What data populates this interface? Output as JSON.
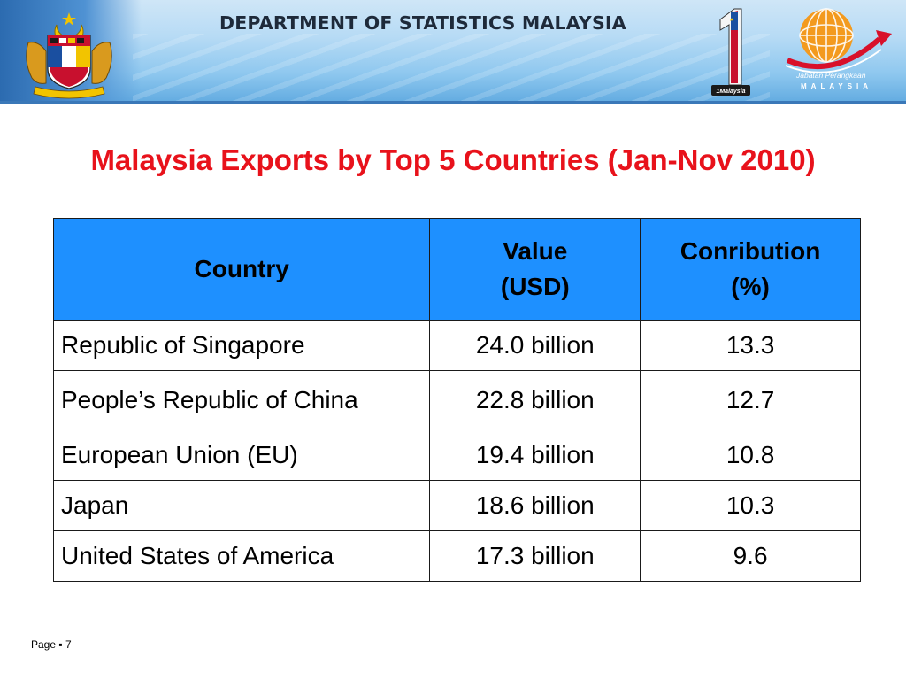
{
  "banner": {
    "department_title": "DEPARTMENT OF STATISTICS MALAYSIA",
    "logo_org_line1": "Jabatan Perangkaan",
    "logo_org_line2": "MALAYSIA",
    "one_logo_text": "1Malaysia",
    "colors": {
      "sky": "#8fc8ef",
      "title_text": "#1e2a3a"
    }
  },
  "title": "Malaysia Exports by Top 5 Countries (Jan-Nov 2010)",
  "table": {
    "headers": [
      {
        "line1": "Country",
        "line2": ""
      },
      {
        "line1": "Value",
        "line2": "(USD)"
      },
      {
        "line1": "Conribution",
        "line2": "(%)"
      }
    ],
    "rows": [
      {
        "country": "Republic of Singapore",
        "value": "24.0 billion",
        "contribution": "13.3"
      },
      {
        "country": "People’s Republic of China",
        "value": "22.8 billion",
        "contribution": "12.7"
      },
      {
        "country": "European Union (EU)",
        "value": "19.4 billion",
        "contribution": "10.8"
      },
      {
        "country": "Japan",
        "value": "18.6 billion",
        "contribution": "10.3"
      },
      {
        "country": "United States of America",
        "value": "17.3 billion",
        "contribution": "9.6"
      }
    ],
    "colors": {
      "header_bg": "#1e90ff",
      "title_red": "#e8121b"
    }
  },
  "footer": {
    "page_label": "Page",
    "separator": "▪",
    "page_number": "7"
  }
}
